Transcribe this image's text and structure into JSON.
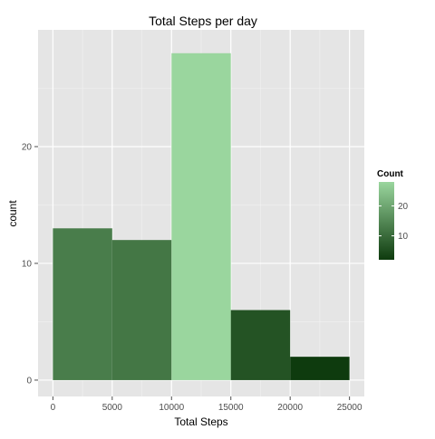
{
  "chart_data": {
    "type": "bar",
    "title": "Total Steps per day",
    "xlabel": "Total Steps",
    "ylabel": "count",
    "bins": [
      {
        "from": 0,
        "to": 5000,
        "count": 13
      },
      {
        "from": 5000,
        "to": 10000,
        "count": 12
      },
      {
        "from": 10000,
        "to": 15000,
        "count": 28
      },
      {
        "from": 15000,
        "to": 20000,
        "count": 6
      },
      {
        "from": 20000,
        "to": 25000,
        "count": 2
      }
    ],
    "xlim": [
      -1250,
      26250
    ],
    "ylim": [
      -1.4,
      30
    ],
    "xticks": [
      0,
      5000,
      10000,
      15000,
      20000,
      25000
    ],
    "yticks": [
      0,
      10,
      20
    ],
    "grid": true,
    "legend": {
      "title": "Count",
      "placement": "right",
      "range": [
        2,
        28
      ],
      "ticks": [
        10,
        20
      ],
      "color_low": "#0e3b0e",
      "color_high": "#9ad69e"
    },
    "panel_color": "#e5e5e5",
    "grid_color": "#ffffff"
  }
}
